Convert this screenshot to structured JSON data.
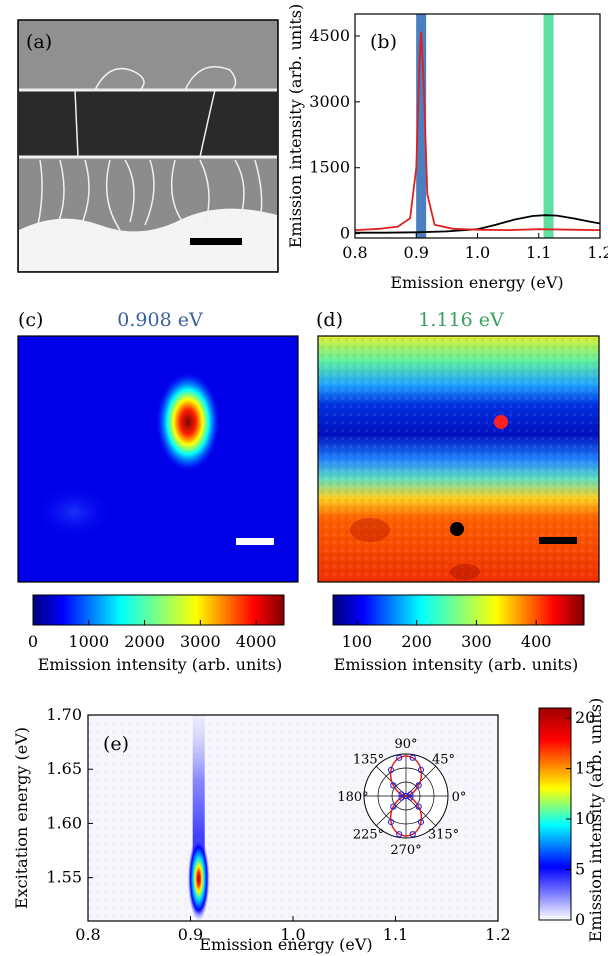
{
  "panel_labels": {
    "a": "(a)",
    "b": "(b)",
    "c": "(c)",
    "d": "(d)",
    "e": "(e)"
  },
  "panel_c": {
    "title": "0.908 eV",
    "title_color": "#3a5f9a"
  },
  "panel_d": {
    "title": "1.116 eV",
    "title_color": "#3aa060"
  },
  "colorbar_c": {
    "label": "Emission intensity (arb. units)",
    "ticks": [
      "0",
      "1000",
      "2000",
      "3000",
      "4000"
    ]
  },
  "colorbar_d": {
    "label": "Emission intensity (arb. units)",
    "ticks": [
      "100",
      "200",
      "300",
      "400"
    ]
  },
  "colorbar_e": {
    "label": "Emission intensity (arb. units)",
    "ticks": [
      "0",
      "5",
      "10",
      "15",
      "20"
    ]
  },
  "polar": {
    "angles": [
      "90°",
      "45°",
      "0°",
      "315°",
      "270°",
      "225°",
      "180°",
      "135°"
    ]
  },
  "chart_data": [
    {
      "panel": "b",
      "type": "line",
      "xlabel": "Emission energy (eV)",
      "ylabel": "Emission intensity (arb. units)",
      "xlim": [
        0.8,
        1.2
      ],
      "ylim": [
        -100,
        5000
      ],
      "xticks": [
        "0.8",
        "0.9",
        "1.0",
        "1.1",
        "1.2"
      ],
      "yticks": [
        "0",
        "1500",
        "3000",
        "4500"
      ],
      "highlight_bands": [
        {
          "center": 0.908,
          "color": "#4a7fc0"
        },
        {
          "center": 1.116,
          "color": "#5de0a0"
        }
      ],
      "series": [
        {
          "color": "#e02020",
          "x": [
            0.8,
            0.84,
            0.87,
            0.89,
            0.9,
            0.905,
            0.908,
            0.912,
            0.918,
            0.93,
            0.96,
            1.0,
            1.05,
            1.1,
            1.15,
            1.2
          ],
          "y": [
            80,
            110,
            160,
            350,
            1500,
            3800,
            4600,
            3500,
            900,
            200,
            110,
            90,
            80,
            100,
            90,
            80
          ]
        },
        {
          "color": "#000000",
          "x": [
            0.8,
            0.85,
            0.9,
            0.95,
            1.0,
            1.03,
            1.06,
            1.09,
            1.11,
            1.13,
            1.16,
            1.18,
            1.2
          ],
          "y": [
            20,
            20,
            30,
            50,
            100,
            200,
            320,
            400,
            420,
            410,
            340,
            280,
            230
          ]
        }
      ]
    },
    {
      "panel": "e",
      "type": "heatmap",
      "xlabel": "Emission energy (eV)",
      "ylabel": "Excitation energy (eV)",
      "xlim": [
        0.8,
        1.2
      ],
      "ylim": [
        1.51,
        1.7
      ],
      "xticks": [
        "0.8",
        "0.9",
        "1.0",
        "1.1",
        "1.2"
      ],
      "yticks": [
        "1.55",
        "1.60",
        "1.65",
        "1.70"
      ],
      "peak": {
        "x": 0.908,
        "y": 1.549,
        "value": 21
      },
      "colorbar_range": [
        0,
        21
      ]
    }
  ]
}
